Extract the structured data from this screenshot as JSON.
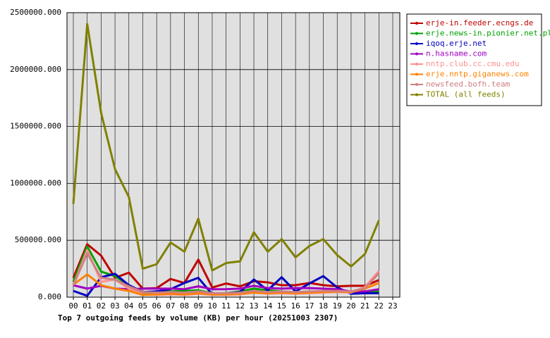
{
  "chart_data": {
    "type": "line",
    "title": "Top 7 outgoing feeds by volume (KB) per hour (20251003 2307)",
    "categories": [
      "00",
      "01",
      "02",
      "03",
      "04",
      "05",
      "06",
      "07",
      "08",
      "09",
      "10",
      "11",
      "12",
      "13",
      "14",
      "15",
      "16",
      "17",
      "18",
      "19",
      "20",
      "21",
      "22",
      "23"
    ],
    "ylim": [
      0,
      2500000
    ],
    "yticks": [
      {
        "value": 0,
        "label": "0.000"
      },
      {
        "value": 500000,
        "label": "500000.000"
      },
      {
        "value": 1000000,
        "label": "1000000.000"
      },
      {
        "value": 1500000,
        "label": "1500000.000"
      },
      {
        "value": 2000000,
        "label": "2000000.000"
      },
      {
        "value": 2500000,
        "label": "2500000.000"
      }
    ],
    "grid": true,
    "legend": "right",
    "series": [
      {
        "name": "erje-in.feeder.ecngs.de",
        "color": "#c00000",
        "values": [
          170000,
          465000,
          365000,
          170000,
          215000,
          75000,
          80000,
          160000,
          125000,
          330000,
          85000,
          120000,
          95000,
          140000,
          130000,
          105000,
          105000,
          125000,
          105000,
          95000,
          100000,
          100000,
          150000,
          null
        ]
      },
      {
        "name": "erje.news-in.pionier.net.pl",
        "color": "#00a000",
        "values": [
          135000,
          445000,
          225000,
          185000,
          105000,
          35000,
          45000,
          50000,
          55000,
          60000,
          35000,
          35000,
          50000,
          75000,
          60000,
          50000,
          45000,
          45000,
          50000,
          45000,
          50000,
          50000,
          50000,
          null
        ]
      },
      {
        "name": "iqoq.erje.net",
        "color": "#0000c0",
        "values": [
          55000,
          12000,
          175000,
          205000,
          105000,
          45000,
          50000,
          70000,
          125000,
          170000,
          25000,
          35000,
          45000,
          155000,
          60000,
          175000,
          50000,
          120000,
          185000,
          85000,
          30000,
          35000,
          35000,
          null
        ]
      },
      {
        "name": "n.hasname.com",
        "color": "#a000c0",
        "values": [
          105000,
          75000,
          100000,
          75000,
          70000,
          75000,
          75000,
          75000,
          70000,
          95000,
          70000,
          70000,
          75000,
          100000,
          80000,
          75000,
          80000,
          80000,
          75000,
          70000,
          50000,
          50000,
          70000,
          null
        ]
      },
      {
        "name": "nntp.club.cc.cmu.edu",
        "color": "#ff9090",
        "values": [
          105000,
          415000,
          135000,
          155000,
          75000,
          25000,
          20000,
          25000,
          20000,
          30000,
          20000,
          20000,
          25000,
          40000,
          30000,
          35000,
          30000,
          35000,
          40000,
          45000,
          40000,
          90000,
          230000,
          null
        ]
      },
      {
        "name": "erje.nntp.giganews.com",
        "color": "#ff8000",
        "values": [
          110000,
          200000,
          105000,
          75000,
          55000,
          20000,
          25000,
          30000,
          25000,
          35000,
          25000,
          25000,
          30000,
          40000,
          35000,
          40000,
          35000,
          40000,
          45000,
          50000,
          45000,
          75000,
          125000,
          null
        ]
      },
      {
        "name": "newsfeed.bofh.team",
        "color": "#d08080",
        "values": [
          105000,
          385000,
          170000,
          155000,
          95000,
          45000,
          40000,
          45000,
          40000,
          50000,
          35000,
          35000,
          40000,
          55000,
          45000,
          50000,
          45000,
          50000,
          55000,
          55000,
          50000,
          80000,
          210000,
          null
        ]
      },
      {
        "name": "TOTAL (all feeds)",
        "color": "#808000",
        "values": [
          820000,
          2400000,
          1620000,
          1125000,
          880000,
          250000,
          290000,
          480000,
          400000,
          690000,
          235000,
          300000,
          315000,
          570000,
          400000,
          510000,
          350000,
          450000,
          510000,
          370000,
          270000,
          380000,
          675000,
          null
        ]
      }
    ]
  }
}
